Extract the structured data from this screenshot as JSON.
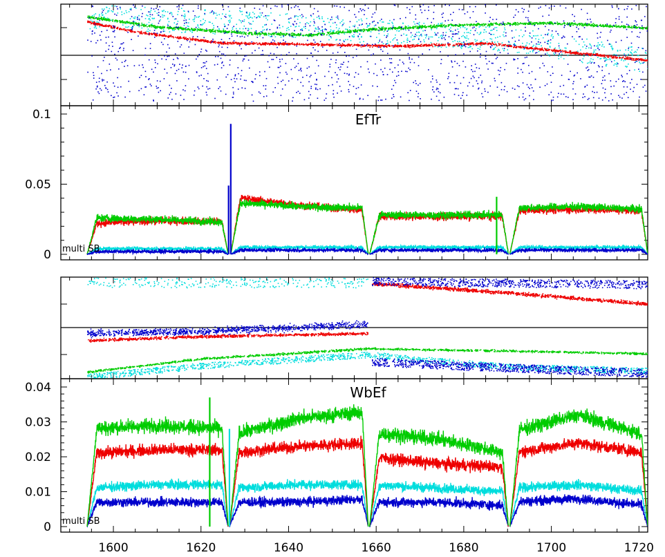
{
  "chart_data": [
    {
      "type": "scatter",
      "panel": "top-scatter",
      "xlim": [
        1588,
        1722
      ],
      "ylim": [
        0,
        1
      ],
      "yticks": [],
      "grid": false,
      "series": [
        {
          "color": "#00dddd",
          "trend": [
            [
              1594,
              0.88
            ],
            [
              1630,
              0.82
            ],
            [
              1660,
              0.74
            ],
            [
              1690,
              0.66
            ],
            [
              1722,
              0.45
            ]
          ],
          "spread": 0.12,
          "density": 900,
          "marker": "dots"
        },
        {
          "color": "#00cc00",
          "trend": [
            [
              1594,
              0.88
            ],
            [
              1610,
              0.78
            ],
            [
              1630,
              0.72
            ],
            [
              1645,
              0.7
            ],
            [
              1660,
              0.76
            ],
            [
              1680,
              0.8
            ],
            [
              1700,
              0.82
            ],
            [
              1722,
              0.77
            ]
          ],
          "spread": 0.02,
          "density": 1600,
          "marker": "band"
        },
        {
          "color": "#ee0000",
          "trend": [
            [
              1594,
              0.83
            ],
            [
              1605,
              0.73
            ],
            [
              1625,
              0.62
            ],
            [
              1645,
              0.61
            ],
            [
              1665,
              0.59
            ],
            [
              1685,
              0.62
            ],
            [
              1700,
              0.55
            ],
            [
              1722,
              0.45
            ]
          ],
          "spread": 0.018,
          "density": 1600,
          "marker": "band"
        },
        {
          "color": "#0000cc",
          "trend": [
            [
              1594,
              0.55
            ],
            [
              1722,
              0.55
            ]
          ],
          "spread": 0.5,
          "density": 1400,
          "marker": "dots"
        }
      ]
    },
    {
      "type": "line",
      "panel": "EfTr",
      "title": "EfTr",
      "note": "multi SB",
      "xlim": [
        1588,
        1722
      ],
      "ylim": [
        0,
        0.1
      ],
      "yticks": [
        0,
        0.05,
        0.1
      ],
      "ytick_labels": [
        "0",
        "0.05",
        "0.1"
      ],
      "gaps": [
        [
          1594,
          1626.2
        ],
        [
          1626.8,
          1658.2
        ],
        [
          1658.5,
          1690.2
        ],
        [
          1690.5,
          1722
        ]
      ],
      "spikes": [
        {
          "x": 1626.3,
          "value": 0.049,
          "color": "#0000cc"
        },
        {
          "x": 1626.8,
          "value": 0.093,
          "color": "#0000cc"
        },
        {
          "x": 1687.5,
          "value": 0.041,
          "color": "#00cc00"
        }
      ],
      "series": [
        {
          "color": "#ee0000",
          "segments": [
            [
              0.022,
              0.024,
              0.023
            ],
            [
              0.041,
              0.035,
              0.031
            ],
            [
              0.027,
              0.027,
              0.027
            ],
            [
              0.031,
              0.032,
              0.031
            ]
          ],
          "noise": 0.004
        },
        {
          "color": "#00cc00",
          "segments": [
            [
              0.026,
              0.025,
              0.023
            ],
            [
              0.037,
              0.034,
              0.033
            ],
            [
              0.028,
              0.028,
              0.028
            ],
            [
              0.033,
              0.034,
              0.032
            ]
          ],
          "noise": 0.004
        },
        {
          "color": "#00dddd",
          "segments": [
            [
              0.004,
              0.004,
              0.004
            ],
            [
              0.005,
              0.005,
              0.005
            ],
            [
              0.005,
              0.005,
              0.005
            ],
            [
              0.005,
              0.005,
              0.005
            ]
          ],
          "noise": 0.002
        },
        {
          "color": "#0000cc",
          "segments": [
            [
              0.002,
              0.002,
              0.002
            ],
            [
              0.003,
              0.003,
              0.003
            ],
            [
              0.003,
              0.003,
              0.003
            ],
            [
              0.003,
              0.003,
              0.003
            ]
          ],
          "noise": 0.002
        }
      ]
    },
    {
      "type": "scatter",
      "panel": "middle-scatter",
      "xlim": [
        1588,
        1722
      ],
      "ylim": [
        0,
        1
      ],
      "yticks": [],
      "grid": false,
      "series": [
        {
          "color": "#00dddd",
          "trend": [
            [
              1594,
              0.98
            ],
            [
              1600,
              0.95
            ],
            [
              1658,
              0.95
            ]
          ],
          "spread": 0.05,
          "density": 300,
          "marker": "dots"
        },
        {
          "color": "#0000cc",
          "trend": [
            [
              1594,
              0.45
            ],
            [
              1620,
              0.47
            ],
            [
              1658,
              0.54
            ]
          ],
          "spread": 0.05,
          "density": 1000,
          "marker": "band"
        },
        {
          "color": "#ee0000",
          "trend": [
            [
              1594,
              0.38
            ],
            [
              1620,
              0.42
            ],
            [
              1658,
              0.45
            ]
          ],
          "spread": 0.02,
          "density": 900,
          "marker": "band"
        },
        {
          "color": "#00cc00",
          "trend": [
            [
              1594,
              0.07
            ],
            [
              1620,
              0.2
            ],
            [
              1658,
              0.3
            ],
            [
              1700,
              0.27
            ],
            [
              1722,
              0.25
            ]
          ],
          "spread": 0.015,
          "density": 1300,
          "marker": "band"
        },
        {
          "color": "#00dddd",
          "trend": [
            [
              1594,
              0.02
            ],
            [
              1620,
              0.13
            ],
            [
              1658,
              0.24
            ],
            [
              1690,
              0.12
            ],
            [
              1722,
              0.08
            ]
          ],
          "spread": 0.03,
          "density": 1300,
          "marker": "dots"
        },
        {
          "color": "#ee0000",
          "trend": [
            [
              1659,
              0.94
            ],
            [
              1690,
              0.85
            ],
            [
              1722,
              0.74
            ]
          ],
          "spread": 0.025,
          "density": 1100,
          "marker": "band"
        },
        {
          "color": "#0000cc",
          "trend": [
            [
              1659,
              0.96
            ],
            [
              1722,
              0.93
            ]
          ],
          "spread": 0.04,
          "density": 700,
          "marker": "dots"
        },
        {
          "color": "#0000cc",
          "trend": [
            [
              1659,
              0.17
            ],
            [
              1690,
              0.11
            ],
            [
              1722,
              0.06
            ]
          ],
          "spread": 0.04,
          "density": 900,
          "marker": "dots"
        }
      ]
    },
    {
      "type": "line",
      "panel": "WbEf",
      "title": "WbEf",
      "note": "multi SB",
      "xlim": [
        1588,
        1722
      ],
      "ylim": [
        0,
        0.04
      ],
      "yticks": [
        0,
        0.01,
        0.02,
        0.03,
        0.04
      ],
      "ytick_labels": [
        "0",
        "0.01",
        "0.02",
        "0.03",
        "0.04"
      ],
      "xticks": [
        1600,
        1620,
        1640,
        1660,
        1680,
        1700,
        1720
      ],
      "xtick_labels": [
        "1600",
        "1620",
        "1640",
        "1660",
        "1680",
        "1700",
        "1720"
      ],
      "gaps": [
        [
          1594,
          1626.2
        ],
        [
          1626.5,
          1658.2
        ],
        [
          1658.5,
          1690.2
        ],
        [
          1690.5,
          1722
        ]
      ],
      "spikes": [
        {
          "x": 1622.0,
          "value": 0.037,
          "color": "#00cc00"
        },
        {
          "x": 1626.5,
          "value": 0.028,
          "color": "#00dddd"
        }
      ],
      "series": [
        {
          "color": "#00dddd",
          "segments": [
            [
              0.011,
              0.012,
              0.012
            ],
            [
              0.011,
              0.012,
              0.012
            ],
            [
              0.012,
              0.011,
              0.01
            ],
            [
              0.011,
              0.012,
              0.01
            ]
          ],
          "noise": 0.002
        },
        {
          "color": "#0000cc",
          "segments": [
            [
              0.007,
              0.007,
              0.007
            ],
            [
              0.007,
              0.007,
              0.008
            ],
            [
              0.007,
              0.007,
              0.006
            ],
            [
              0.007,
              0.008,
              0.006
            ]
          ],
          "noise": 0.002
        },
        {
          "color": "#ee0000",
          "segments": [
            [
              0.021,
              0.022,
              0.022
            ],
            [
              0.021,
              0.023,
              0.024
            ],
            [
              0.02,
              0.018,
              0.017
            ],
            [
              0.021,
              0.024,
              0.021
            ]
          ],
          "noise": 0.0025
        },
        {
          "color": "#00cc00",
          "segments": [
            [
              0.028,
              0.029,
              0.028
            ],
            [
              0.026,
              0.031,
              0.033
            ],
            [
              0.027,
              0.025,
              0.021
            ],
            [
              0.027,
              0.032,
              0.026
            ]
          ],
          "noise": 0.003
        }
      ]
    }
  ]
}
